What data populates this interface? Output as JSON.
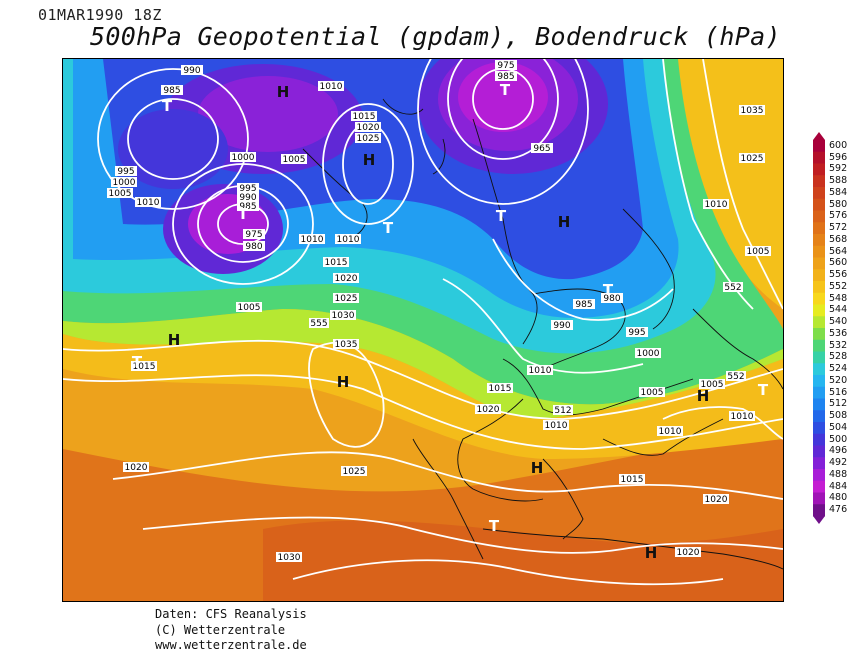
{
  "header": {
    "date": "01MAR1990 18Z",
    "title": "500hPa Geopotential (gpdam), Bodendruck (hPa)"
  },
  "colorbar": {
    "labels": [
      "600",
      "596",
      "592",
      "588",
      "584",
      "580",
      "576",
      "572",
      "568",
      "564",
      "560",
      "556",
      "552",
      "548",
      "544",
      "540",
      "536",
      "532",
      "528",
      "524",
      "520",
      "516",
      "512",
      "508",
      "504",
      "500",
      "496",
      "492",
      "488",
      "484",
      "480",
      "476"
    ],
    "colors": [
      "#a8003a",
      "#b4102a",
      "#c01e22",
      "#c9321e",
      "#cf421c",
      "#d4521a",
      "#da621a",
      "#e07218",
      "#e58218",
      "#ea9218",
      "#eea21a",
      "#f2b21a",
      "#f6c41a",
      "#f8d81c",
      "#e6ec20",
      "#b6e832",
      "#7ede4a",
      "#4ed676",
      "#36d2a6",
      "#2ccadc",
      "#26b6f0",
      "#229ef2",
      "#1e84f0",
      "#2268ea",
      "#2e4ee2",
      "#4436da",
      "#6028d6",
      "#8420d8",
      "#a81ed8",
      "#c41ed2",
      "#a014b6",
      "#70108a"
    ]
  },
  "map": {
    "pressure_labels": [
      "990",
      "985",
      "975",
      "985",
      "1010",
      "1015",
      "1020",
      "1025",
      "1000",
      "1005",
      "995",
      "1000",
      "1005",
      "1010",
      "995",
      "990",
      "985",
      "975",
      "980",
      "965",
      "1035",
      "1025",
      "1010",
      "1005",
      "1015",
      "1020",
      "1025",
      "1030",
      "1035",
      "1010",
      "1010",
      "1005",
      "1015",
      "1020",
      "1005",
      "1010",
      "990",
      "985",
      "980",
      "995",
      "1000",
      "1005",
      "1010",
      "1010",
      "1015",
      "1020",
      "1025",
      "1030",
      "1015",
      "1020",
      "1020",
      "1010",
      "1015"
    ],
    "geopotential_labels": [
      "555",
      "552",
      "552",
      "512"
    ],
    "high_marks": [
      "H",
      "H",
      "H",
      "H",
      "H",
      "H",
      "H",
      "H"
    ],
    "low_marks": [
      "T",
      "T",
      "T",
      "T",
      "T",
      "T",
      "T",
      "T",
      "T"
    ]
  },
  "credits": {
    "line1": "Daten: CFS Reanalysis",
    "line2": "(C) Wetterzentrale",
    "line3": "www.wetterzentrale.de"
  }
}
